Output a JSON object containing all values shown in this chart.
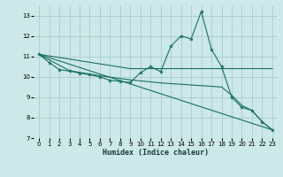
{
  "xlabel": "Humidex (Indice chaleur)",
  "bg_color": "#cce8e8",
  "grid_color": "#aacccc",
  "line_color": "#1a6e64",
  "xlim": [
    -0.5,
    23.5
  ],
  "ylim": [
    7,
    13.5
  ],
  "yticks": [
    7,
    8,
    9,
    10,
    11,
    12,
    13
  ],
  "xticks": [
    0,
    1,
    2,
    3,
    4,
    5,
    6,
    7,
    8,
    9,
    10,
    11,
    12,
    13,
    14,
    15,
    16,
    17,
    18,
    19,
    20,
    21,
    22,
    23
  ],
  "series1": [
    [
      0,
      11.1
    ],
    [
      1,
      10.7
    ],
    [
      2,
      10.35
    ],
    [
      3,
      10.28
    ],
    [
      4,
      10.18
    ],
    [
      5,
      10.1
    ],
    [
      6,
      10.0
    ],
    [
      7,
      9.82
    ],
    [
      8,
      9.78
    ],
    [
      9,
      9.72
    ],
    [
      10,
      10.2
    ],
    [
      11,
      10.5
    ],
    [
      12,
      10.25
    ],
    [
      13,
      11.5
    ],
    [
      14,
      12.0
    ],
    [
      15,
      11.85
    ],
    [
      16,
      13.2
    ],
    [
      17,
      11.35
    ],
    [
      18,
      10.5
    ],
    [
      19,
      9.0
    ],
    [
      20,
      8.5
    ],
    [
      21,
      8.35
    ],
    [
      22,
      7.8
    ],
    [
      23,
      7.4
    ]
  ],
  "series2_flat": [
    [
      0,
      11.1
    ],
    [
      9,
      10.4
    ],
    [
      10,
      10.4
    ],
    [
      18,
      10.4
    ],
    [
      19,
      10.4
    ],
    [
      23,
      10.4
    ]
  ],
  "series3_diagonal": [
    [
      0,
      11.1
    ],
    [
      23,
      7.4
    ]
  ],
  "series4_mid": [
    [
      0,
      11.1
    ],
    [
      3,
      10.3
    ],
    [
      6,
      10.05
    ],
    [
      9,
      9.85
    ],
    [
      12,
      9.7
    ],
    [
      15,
      9.6
    ],
    [
      18,
      9.5
    ],
    [
      19,
      9.1
    ],
    [
      20,
      8.6
    ],
    [
      21,
      8.35
    ],
    [
      22,
      7.8
    ],
    [
      23,
      7.4
    ]
  ]
}
